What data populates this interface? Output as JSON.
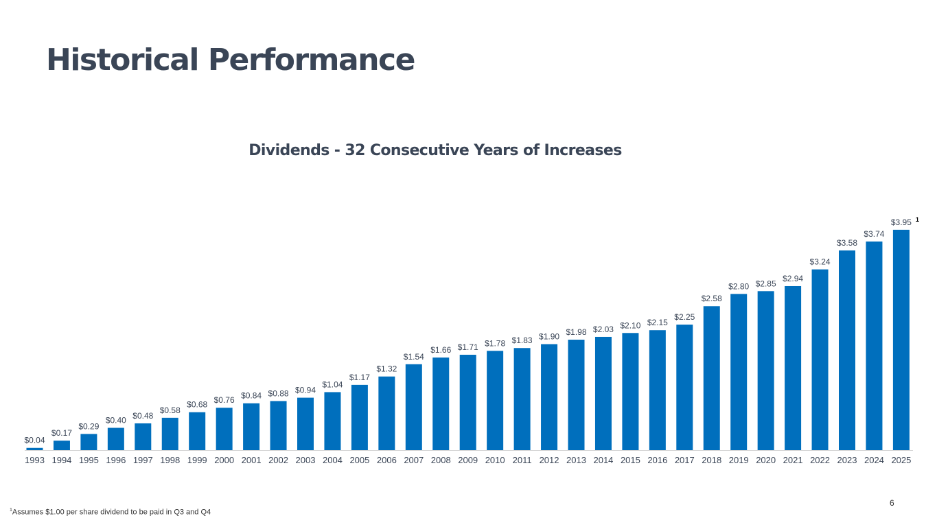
{
  "page": {
    "title": "Historical Performance",
    "footnote_marker": "1",
    "footnote_text": "Assumes $1.00 per share dividend to be paid in Q3 and Q4",
    "page_number": "6"
  },
  "chart_data": {
    "type": "bar",
    "title": "Dividends - 32 Consecutive Years of Increases",
    "xlabel": "",
    "ylabel": "",
    "categories": [
      "1993",
      "1994",
      "1995",
      "1996",
      "1997",
      "1998",
      "1999",
      "2000",
      "2001",
      "2002",
      "2003",
      "2004",
      "2005",
      "2006",
      "2007",
      "2008",
      "2009",
      "2010",
      "2011",
      "2012",
      "2013",
      "2014",
      "2015",
      "2016",
      "2017",
      "2018",
      "2019",
      "2020",
      "2021",
      "2022",
      "2023",
      "2024",
      "2025"
    ],
    "values": [
      0.04,
      0.17,
      0.29,
      0.4,
      0.48,
      0.58,
      0.68,
      0.76,
      0.84,
      0.88,
      0.94,
      1.04,
      1.17,
      1.32,
      1.54,
      1.66,
      1.71,
      1.78,
      1.83,
      1.9,
      1.98,
      2.03,
      2.1,
      2.15,
      2.25,
      2.58,
      2.8,
      2.85,
      2.94,
      3.24,
      3.58,
      3.74,
      3.95
    ],
    "data_labels": [
      "$0.04",
      "$0.17",
      "$0.29",
      "$0.40",
      "$0.48",
      "$0.58",
      "$0.68",
      "$0.76",
      "$0.84",
      "$0.88",
      "$0.94",
      "$1.04",
      "$1.17",
      "$1.32",
      "$1.54",
      "$1.66",
      "$1.71",
      "$1.78",
      "$1.83",
      "$1.90",
      "$1.98",
      "$2.03",
      "$2.10",
      "$2.15",
      "$2.25",
      "$2.58",
      "$2.80",
      "$2.85",
      "$2.94",
      "$3.24",
      "$3.58",
      "$3.74",
      "$3.95"
    ],
    "annotation": {
      "category": "2025",
      "marker": "1"
    },
    "ylim": [
      0,
      4
    ],
    "grid": false,
    "legend": "none",
    "colors": {
      "bar": "#006fbd",
      "label": "#3a4556",
      "axis": "#d6d6d6"
    }
  }
}
